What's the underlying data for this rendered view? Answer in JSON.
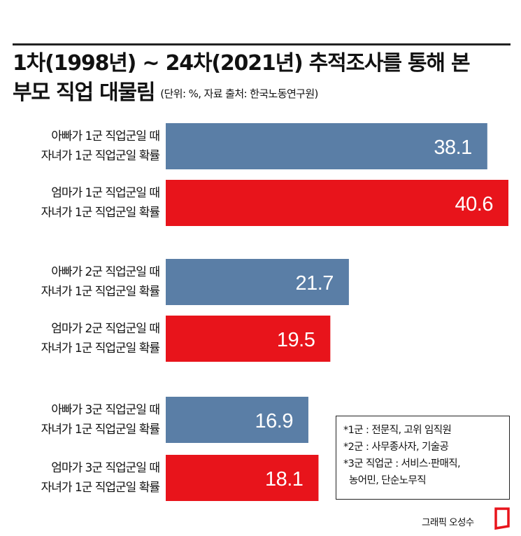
{
  "title": {
    "line1": "1차(1998년) ~ 24차(2021년) 추적조사를 통해 본",
    "line2": "부모 직업 대물림",
    "subtitle": "(단위: %, 자료 출처: 한국노동연구원)"
  },
  "chart_data": {
    "type": "bar",
    "orientation": "horizontal",
    "title": "1차(1998년) ~ 24차(2021년) 추적조사를 통해 본 부모 직업 대물림",
    "unit": "%",
    "categories": [
      [
        "아빠가 1군 직업군일 때",
        "자녀가 1군 직업군일 확률"
      ],
      [
        "엄마가 1군 직업군일 때",
        "자녀가 1군 직업군일 확률"
      ],
      [
        "아빠가 2군 직업군일 때",
        "자녀가 1군 직업군일 확률"
      ],
      [
        "엄마가 2군 직업군일 때",
        "자녀가 1군 직업군일 확률"
      ],
      [
        "아빠가 3군 직업군일 때",
        "자녀가 1군 직업군일 확률"
      ],
      [
        "엄마가 3군 직업군일 때",
        "자녀가 1군 직업군일 확률"
      ]
    ],
    "values": [
      38.1,
      40.6,
      21.7,
      19.5,
      16.9,
      18.1
    ],
    "value_labels": [
      "38.1",
      "40.6",
      "21.7",
      "19.5",
      "16.9",
      "18.1"
    ],
    "parent": [
      "father",
      "mother",
      "father",
      "mother",
      "father",
      "mother"
    ],
    "colors": {
      "father": "#5a7ea6",
      "mother": "#e8141b"
    },
    "xlim": [
      0,
      40.6
    ],
    "grid": false,
    "legend": "none"
  },
  "footnote": {
    "lines": [
      "*1군 : 전문직, 고위 임직원",
      "*2군 : 사무종사자, 기술공",
      "*3군 직업군 : 서비스·판매직,",
      "  농어민, 단순노무직"
    ]
  },
  "credit": "그래픽 오성수",
  "logo_icon": "newspaper-logo-icon"
}
